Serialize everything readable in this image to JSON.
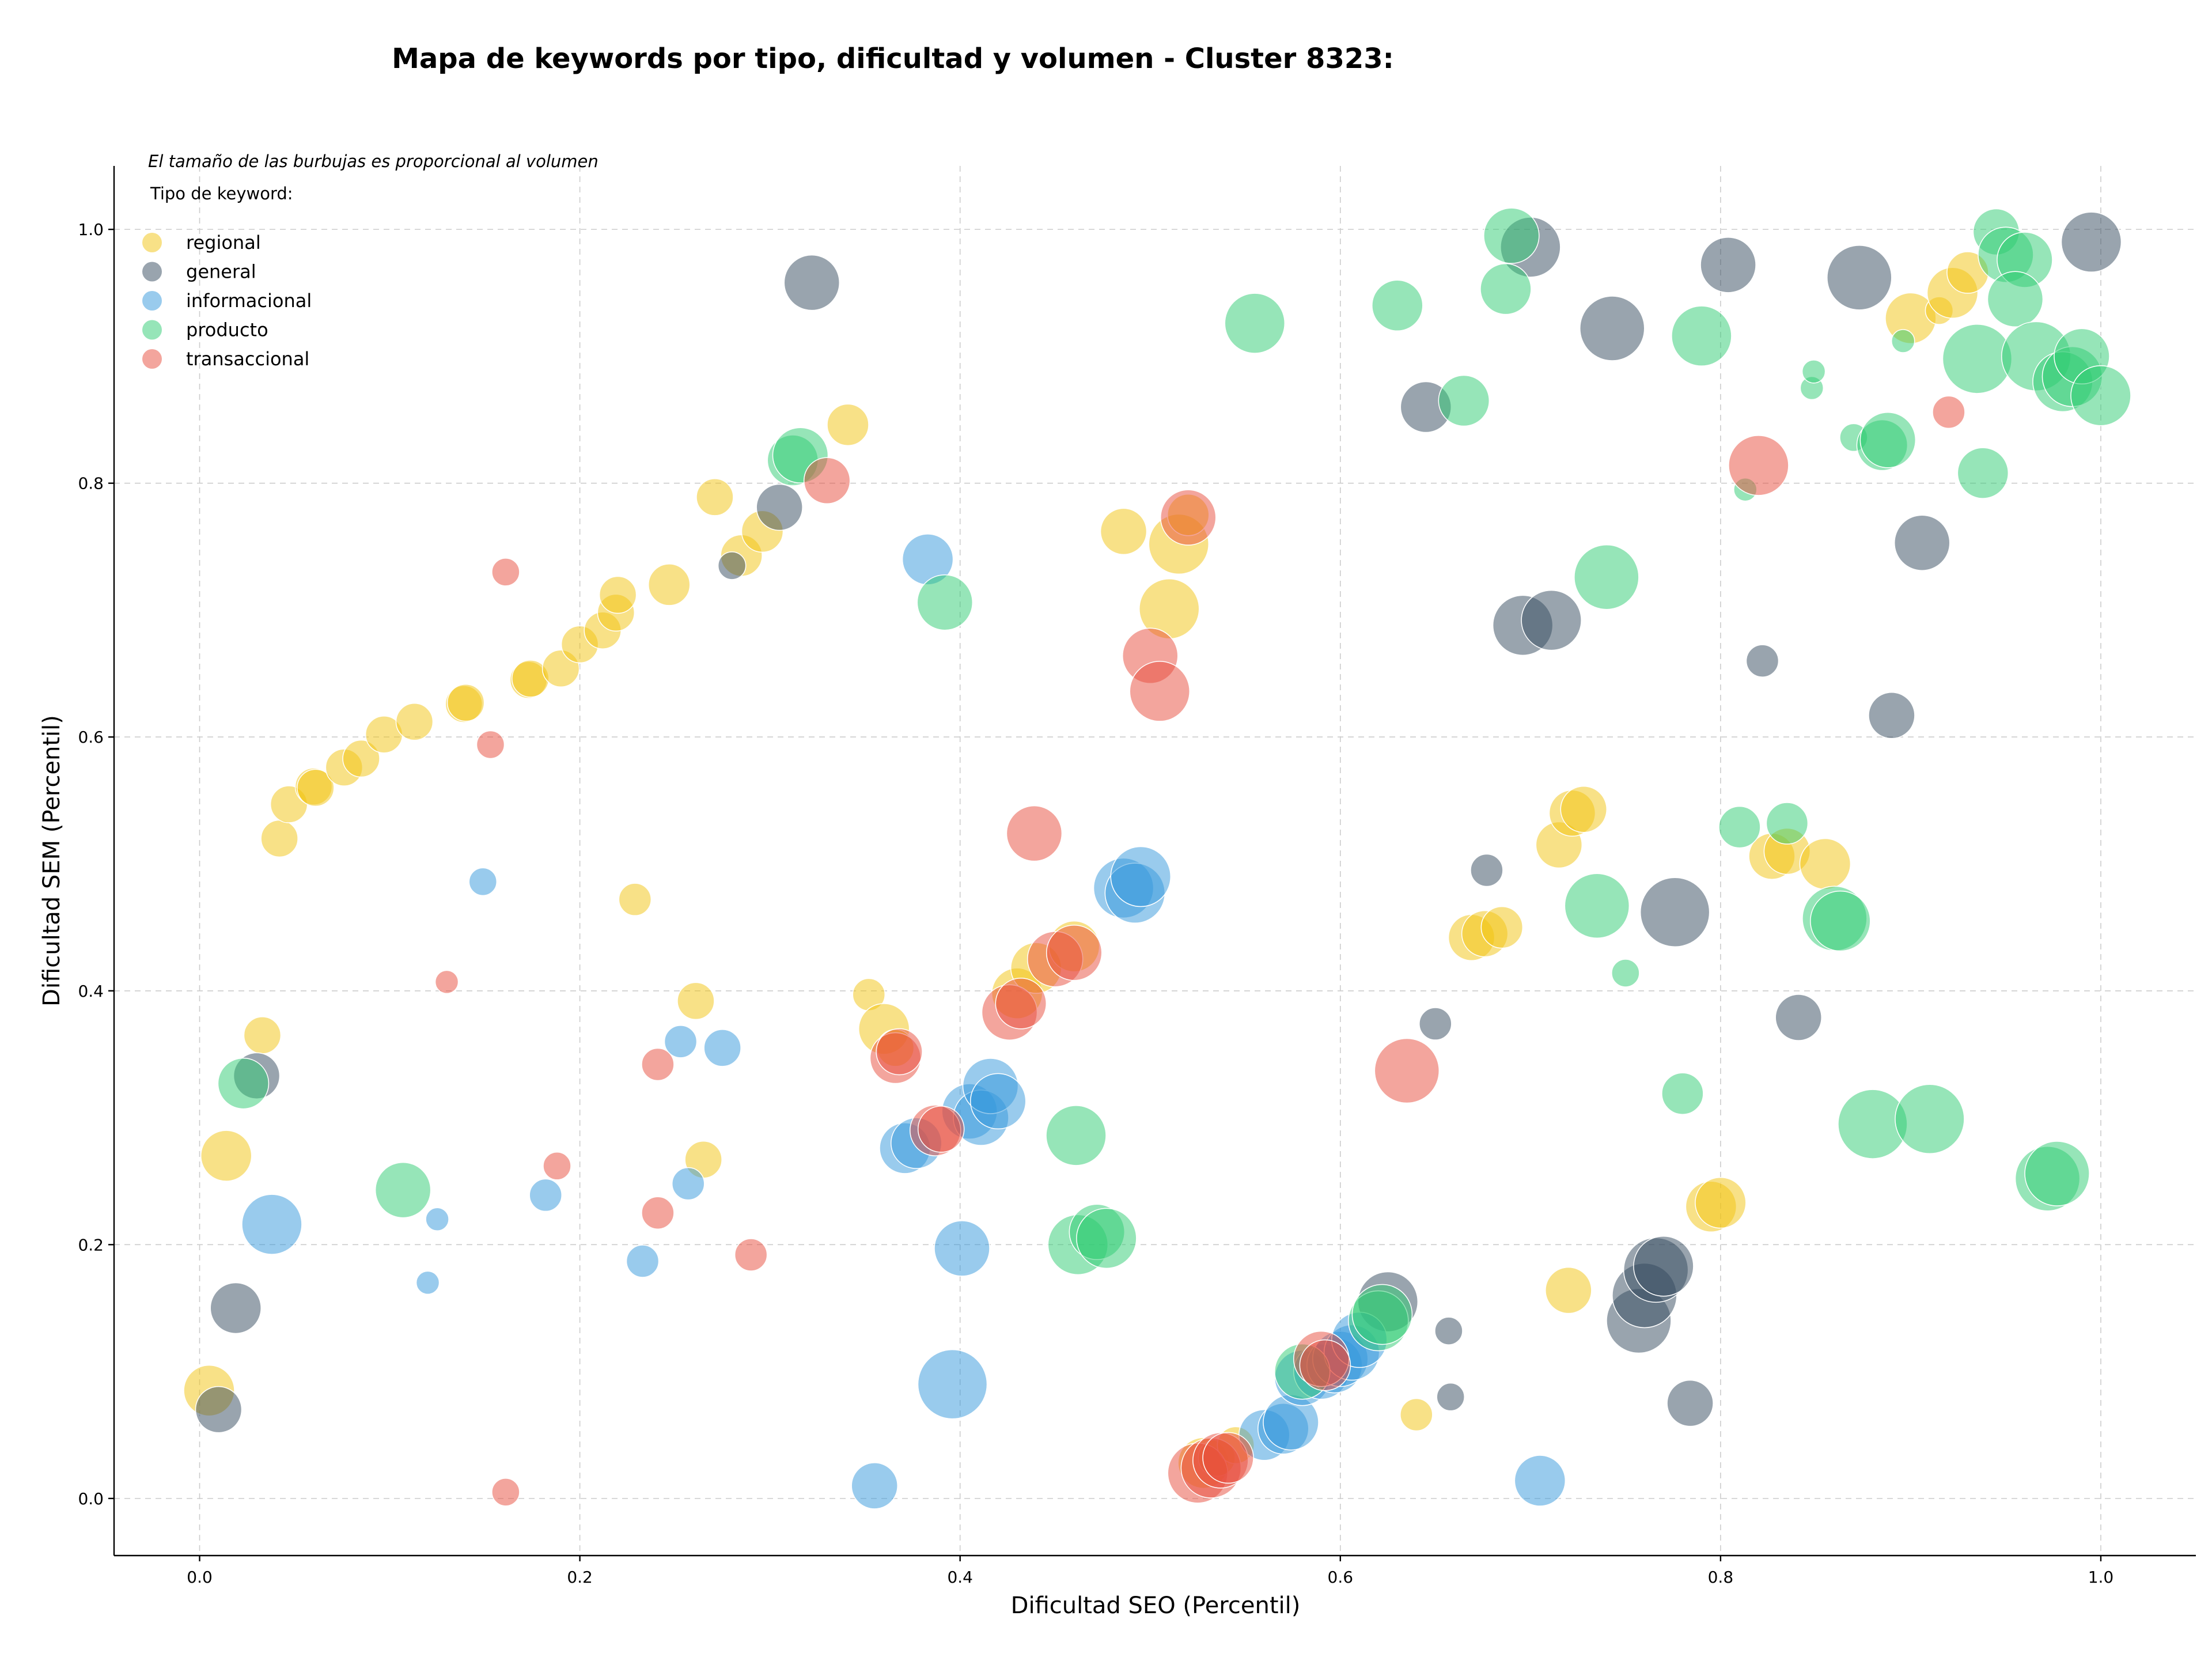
{
  "chart_data": {
    "type": "scatter",
    "title": "Mapa de keywords por tipo, dificultad y volumen - Cluster 8323:",
    "xlabel": "Dificultad SEO (Percentil)",
    "ylabel": "Dificultad SEM (Percentil)",
    "xlim": [
      -0.045,
      1.05
    ],
    "ylim": [
      -0.045,
      1.05
    ],
    "x_ticks": [
      0.0,
      0.2,
      0.4,
      0.6,
      0.8,
      1.0
    ],
    "y_ticks": [
      0.0,
      0.2,
      0.4,
      0.6,
      0.8,
      1.0
    ],
    "x_tick_labels": [
      "0.0",
      "0.2",
      "0.4",
      "0.6",
      "0.8",
      "1.0"
    ],
    "y_tick_labels": [
      "0.0",
      "0.2",
      "0.4",
      "0.6",
      "0.8",
      "1.0"
    ],
    "grid": true,
    "note": "El tamaño de las burbujas es proporcional al volumen",
    "legend": {
      "title": "Tipo de keyword:",
      "placement": "top-left"
    },
    "series": [
      {
        "name": "regional",
        "color": "#f1c40f",
        "points": [
          [
            0.005,
            0.085,
            1.1
          ],
          [
            0.014,
            0.27,
            1.1
          ],
          [
            0.033,
            0.365,
            0.8
          ],
          [
            0.042,
            0.52,
            0.8
          ],
          [
            0.047,
            0.547,
            0.8
          ],
          [
            0.06,
            0.561,
            0.8
          ],
          [
            0.061,
            0.56,
            0.8
          ],
          [
            0.076,
            0.576,
            0.8
          ],
          [
            0.085,
            0.583,
            0.8
          ],
          [
            0.097,
            0.602,
            0.8
          ],
          [
            0.113,
            0.612,
            0.8
          ],
          [
            0.139,
            0.626,
            0.8
          ],
          [
            0.14,
            0.627,
            0.8
          ],
          [
            0.173,
            0.645,
            0.8
          ],
          [
            0.174,
            0.646,
            0.8
          ],
          [
            0.19,
            0.654,
            0.8
          ],
          [
            0.2,
            0.673,
            0.8
          ],
          [
            0.212,
            0.684,
            0.8
          ],
          [
            0.219,
            0.698,
            0.8
          ],
          [
            0.22,
            0.712,
            0.8
          ],
          [
            0.247,
            0.72,
            0.9
          ],
          [
            0.271,
            0.789,
            0.8
          ],
          [
            0.285,
            0.743,
            0.9
          ],
          [
            0.296,
            0.762,
            0.9
          ],
          [
            0.341,
            0.846,
            0.9
          ],
          [
            0.229,
            0.472,
            0.7
          ],
          [
            0.261,
            0.392,
            0.8
          ],
          [
            0.265,
            0.267,
            0.8
          ],
          [
            0.352,
            0.397,
            0.7
          ],
          [
            0.36,
            0.37,
            1.1
          ],
          [
            0.366,
            0.355,
            0.8
          ],
          [
            0.43,
            0.398,
            1.1
          ],
          [
            0.44,
            0.418,
            1.1
          ],
          [
            0.46,
            0.435,
            1.1
          ],
          [
            0.486,
            0.762,
            1.0
          ],
          [
            0.51,
            0.701,
            1.3
          ],
          [
            0.515,
            0.752,
            1.3
          ],
          [
            0.52,
            0.775,
            0.9
          ],
          [
            0.528,
            0.028,
            1.1
          ],
          [
            0.535,
            0.032,
            0.8
          ],
          [
            0.545,
            0.042,
            0.8
          ],
          [
            0.64,
            0.066,
            0.7
          ],
          [
            0.669,
            0.442,
            1.0
          ],
          [
            0.676,
            0.445,
            1.0
          ],
          [
            0.685,
            0.45,
            0.9
          ],
          [
            0.715,
            0.515,
            1.0
          ],
          [
            0.722,
            0.54,
            1.0
          ],
          [
            0.728,
            0.543,
            1.0
          ],
          [
            0.72,
            0.164,
            1.0
          ],
          [
            0.795,
            0.23,
            1.1
          ],
          [
            0.8,
            0.233,
            1.1
          ],
          [
            0.827,
            0.506,
            1.0
          ],
          [
            0.835,
            0.51,
            1.0
          ],
          [
            0.855,
            0.5,
            1.1
          ],
          [
            0.9,
            0.93,
            1.1
          ],
          [
            0.915,
            0.936,
            0.6
          ],
          [
            0.922,
            0.95,
            1.1
          ],
          [
            0.93,
            0.966,
            0.9
          ]
        ]
      },
      {
        "name": "general",
        "color": "#34495e",
        "points": [
          [
            0.01,
            0.07,
            1.0
          ],
          [
            0.019,
            0.15,
            1.1
          ],
          [
            0.03,
            0.333,
            1.0
          ],
          [
            0.28,
            0.735,
            0.6
          ],
          [
            0.305,
            0.781,
            1.0
          ],
          [
            0.322,
            0.958,
            1.2
          ],
          [
            0.625,
            0.155,
            1.3
          ],
          [
            0.645,
            0.86,
            1.1
          ],
          [
            0.65,
            0.374,
            0.7
          ],
          [
            0.657,
            0.132,
            0.6
          ],
          [
            0.658,
            0.08,
            0.6
          ],
          [
            0.677,
            0.495,
            0.7
          ],
          [
            0.696,
            0.688,
            1.3
          ],
          [
            0.7,
            0.986,
            1.3
          ],
          [
            0.711,
            0.692,
            1.3
          ],
          [
            0.743,
            0.922,
            1.4
          ],
          [
            0.757,
            0.14,
            1.4
          ],
          [
            0.76,
            0.16,
            1.4
          ],
          [
            0.766,
            0.18,
            1.4
          ],
          [
            0.77,
            0.183,
            1.3
          ],
          [
            0.776,
            0.462,
            1.5
          ],
          [
            0.784,
            0.075,
            1.0
          ],
          [
            0.804,
            0.972,
            1.2
          ],
          [
            0.822,
            0.66,
            0.7
          ],
          [
            0.841,
            0.379,
            1.0
          ],
          [
            0.873,
            0.962,
            1.4
          ],
          [
            0.89,
            0.617,
            1.0
          ],
          [
            0.906,
            0.753,
            1.2
          ],
          [
            0.995,
            0.99,
            1.3
          ]
        ]
      },
      {
        "name": "informacional",
        "color": "#3498db",
        "points": [
          [
            0.038,
            0.216,
            1.3
          ],
          [
            0.12,
            0.17,
            0.5
          ],
          [
            0.125,
            0.22,
            0.5
          ],
          [
            0.149,
            0.486,
            0.6
          ],
          [
            0.182,
            0.239,
            0.7
          ],
          [
            0.233,
            0.187,
            0.7
          ],
          [
            0.253,
            0.36,
            0.7
          ],
          [
            0.257,
            0.248,
            0.7
          ],
          [
            0.275,
            0.355,
            0.8
          ],
          [
            0.355,
            0.01,
            1.0
          ],
          [
            0.371,
            0.276,
            1.1
          ],
          [
            0.377,
            0.28,
            1.1
          ],
          [
            0.383,
            0.74,
            1.1
          ],
          [
            0.396,
            0.09,
            1.5
          ],
          [
            0.401,
            0.197,
            1.2
          ],
          [
            0.405,
            0.305,
            1.2
          ],
          [
            0.411,
            0.3,
            1.2
          ],
          [
            0.416,
            0.325,
            1.2
          ],
          [
            0.42,
            0.313,
            1.2
          ],
          [
            0.486,
            0.481,
            1.3
          ],
          [
            0.492,
            0.477,
            1.3
          ],
          [
            0.495,
            0.49,
            1.3
          ],
          [
            0.56,
            0.05,
            1.1
          ],
          [
            0.57,
            0.055,
            1.1
          ],
          [
            0.574,
            0.06,
            1.2
          ],
          [
            0.58,
            0.095,
            1.2
          ],
          [
            0.59,
            0.1,
            1.2
          ],
          [
            0.597,
            0.105,
            1.2
          ],
          [
            0.6,
            0.11,
            1.2
          ],
          [
            0.606,
            0.115,
            1.2
          ],
          [
            0.61,
            0.125,
            1.2
          ],
          [
            0.705,
            0.014,
            1.1
          ]
        ]
      },
      {
        "name": "producto",
        "color": "#2ecc71",
        "points": [
          [
            0.023,
            0.327,
            1.1
          ],
          [
            0.107,
            0.243,
            1.2
          ],
          [
            0.312,
            0.818,
            1.1
          ],
          [
            0.316,
            0.822,
            1.2
          ],
          [
            0.392,
            0.706,
            1.2
          ],
          [
            0.461,
            0.286,
            1.3
          ],
          [
            0.462,
            0.2,
            1.3
          ],
          [
            0.472,
            0.21,
            1.2
          ],
          [
            0.477,
            0.205,
            1.3
          ],
          [
            0.555,
            0.926,
            1.3
          ],
          [
            0.58,
            0.1,
            1.2
          ],
          [
            0.62,
            0.14,
            1.3
          ],
          [
            0.622,
            0.145,
            1.3
          ],
          [
            0.63,
            0.94,
            1.1
          ],
          [
            0.665,
            0.865,
            1.1
          ],
          [
            0.687,
            0.953,
            1.1
          ],
          [
            0.69,
            0.995,
            1.2
          ],
          [
            0.735,
            0.467,
            1.4
          ],
          [
            0.74,
            0.726,
            1.4
          ],
          [
            0.75,
            0.414,
            0.6
          ],
          [
            0.78,
            0.319,
            0.9
          ],
          [
            0.79,
            0.916,
            1.3
          ],
          [
            0.81,
            0.529,
            0.9
          ],
          [
            0.813,
            0.795,
            0.5
          ],
          [
            0.835,
            0.532,
            0.9
          ],
          [
            0.848,
            0.875,
            0.5
          ],
          [
            0.849,
            0.888,
            0.5
          ],
          [
            0.86,
            0.457,
            1.4
          ],
          [
            0.863,
            0.455,
            1.3
          ],
          [
            0.87,
            0.836,
            0.6
          ],
          [
            0.88,
            0.295,
            1.5
          ],
          [
            0.885,
            0.83,
            1.1
          ],
          [
            0.888,
            0.834,
            1.2
          ],
          [
            0.896,
            0.912,
            0.5
          ],
          [
            0.91,
            0.299,
            1.5
          ],
          [
            0.935,
            0.898,
            1.5
          ],
          [
            0.938,
            0.808,
            1.1
          ],
          [
            0.945,
            0.998,
            1.0
          ],
          [
            0.95,
            0.98,
            1.2
          ],
          [
            0.96,
            0.976,
            1.2
          ],
          [
            0.955,
            0.945,
            1.2
          ],
          [
            0.966,
            0.9,
            1.5
          ],
          [
            0.972,
            0.252,
            1.4
          ],
          [
            0.977,
            0.256,
            1.4
          ],
          [
            0.98,
            0.88,
            1.3
          ],
          [
            0.985,
            0.884,
            1.3
          ],
          [
            0.99,
            0.9,
            1.2
          ],
          [
            1.0,
            0.869,
            1.3
          ]
        ]
      },
      {
        "name": "transaccional",
        "color": "#e74c3c",
        "points": [
          [
            0.13,
            0.407,
            0.5
          ],
          [
            0.153,
            0.594,
            0.6
          ],
          [
            0.161,
            0.73,
            0.6
          ],
          [
            0.161,
            0.005,
            0.6
          ],
          [
            0.188,
            0.262,
            0.6
          ],
          [
            0.241,
            0.342,
            0.7
          ],
          [
            0.241,
            0.225,
            0.7
          ],
          [
            0.29,
            0.192,
            0.7
          ],
          [
            0.33,
            0.802,
            1.0
          ],
          [
            0.366,
            0.347,
            1.1
          ],
          [
            0.368,
            0.352,
            1.0
          ],
          [
            0.387,
            0.29,
            1.1
          ],
          [
            0.39,
            0.291,
            1.0
          ],
          [
            0.426,
            0.383,
            1.2
          ],
          [
            0.432,
            0.39,
            1.1
          ],
          [
            0.439,
            0.524,
            1.2
          ],
          [
            0.45,
            0.425,
            1.2
          ],
          [
            0.46,
            0.43,
            1.2
          ],
          [
            0.5,
            0.664,
            1.2
          ],
          [
            0.505,
            0.636,
            1.3
          ],
          [
            0.52,
            0.773,
            1.2
          ],
          [
            0.525,
            0.02,
            1.3
          ],
          [
            0.532,
            0.024,
            1.3
          ],
          [
            0.537,
            0.03,
            1.2
          ],
          [
            0.541,
            0.032,
            1.1
          ],
          [
            0.59,
            0.11,
            1.2
          ],
          [
            0.592,
            0.105,
            1.1
          ],
          [
            0.635,
            0.337,
            1.4
          ],
          [
            0.82,
            0.814,
            1.3
          ],
          [
            0.92,
            0.856,
            0.7
          ]
        ]
      }
    ]
  }
}
